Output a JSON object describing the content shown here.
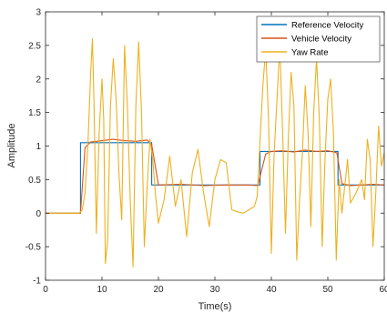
{
  "chart_data": {
    "type": "line",
    "xlabel": "Time(s)",
    "ylabel": "Amplitude",
    "xlim": [
      0,
      60
    ],
    "ylim": [
      -1,
      3
    ],
    "xticks": [
      0,
      10,
      20,
      30,
      40,
      50,
      60
    ],
    "xtick_labels": [
      "0",
      "10",
      "20",
      "30",
      "40",
      "50",
      "60"
    ],
    "yticks": [
      -1,
      -0.5,
      0,
      0.5,
      1,
      1.5,
      2,
      2.5,
      3
    ],
    "ytick_labels": [
      "-1",
      "-0.5",
      "0",
      "0.5",
      "1",
      "1.5",
      "2",
      "2.5",
      "3"
    ],
    "grid": false,
    "legend_position": "top-right",
    "series": [
      {
        "name": "Reference Velocity",
        "color": "#0072BD",
        "x": [
          0,
          6.2,
          6.2,
          18.8,
          18.8,
          38,
          38,
          51.8,
          51.8,
          60
        ],
        "y": [
          0,
          0,
          1.05,
          1.05,
          0.42,
          0.42,
          0.92,
          0.92,
          0.42,
          0.42
        ]
      },
      {
        "name": "Vehicle Velocity",
        "color": "#D95319",
        "x": [
          0,
          6.2,
          7,
          8,
          10,
          12,
          14,
          16,
          18,
          18.8,
          20,
          24,
          28,
          32,
          36,
          37.6,
          39,
          40,
          42,
          44,
          46,
          48,
          50,
          51.6,
          52.5,
          54,
          56,
          58,
          60
        ],
        "y": [
          0,
          0,
          0.98,
          1.06,
          1.08,
          1.1,
          1.08,
          1.07,
          1.09,
          1.02,
          0.42,
          0.43,
          0.41,
          0.42,
          0.42,
          0.41,
          0.88,
          0.92,
          0.93,
          0.91,
          0.94,
          0.92,
          0.93,
          0.9,
          0.44,
          0.41,
          0.42,
          0.43,
          0.42
        ]
      },
      {
        "name": "Yaw Rate",
        "color": "#EDB120",
        "x": [
          0,
          6,
          6.5,
          7,
          7.5,
          8,
          8.3,
          8.6,
          9,
          9.5,
          10,
          10.3,
          10.6,
          11,
          11.5,
          12,
          12.5,
          13,
          13.5,
          14,
          14.5,
          15,
          15.5,
          16,
          16.5,
          17,
          17.5,
          18,
          18.5,
          19,
          19.5,
          20,
          21,
          22,
          23,
          24,
          25,
          26,
          27,
          28,
          29,
          30,
          31,
          32,
          33,
          34,
          35,
          36,
          37,
          37.5,
          38,
          38.5,
          39,
          39.5,
          40,
          40.5,
          41,
          41.5,
          42,
          42.5,
          43,
          43.5,
          44,
          44.5,
          45,
          45.5,
          46,
          46.5,
          47,
          47.5,
          48,
          48.5,
          49,
          49.5,
          50,
          50.5,
          51,
          51.5,
          52,
          52.5,
          53,
          53.5,
          54,
          55,
          56,
          56.5,
          57,
          57.5,
          58,
          58.5,
          59,
          59.5,
          60
        ],
        "y": [
          0,
          0,
          0.05,
          0.3,
          1.0,
          2.1,
          2.6,
          1.6,
          -0.3,
          1.2,
          2.0,
          1.4,
          -0.75,
          -0.4,
          1.6,
          2.3,
          1.7,
          0.6,
          -0.1,
          2.5,
          1.6,
          0.2,
          -0.8,
          1.6,
          2.55,
          1.5,
          -0.5,
          0.4,
          1.1,
          0.8,
          0.25,
          -0.15,
          0.2,
          0.85,
          0.1,
          0.5,
          -0.35,
          0.6,
          0.95,
          0.3,
          -0.2,
          0.5,
          0.8,
          0.75,
          0.05,
          0.02,
          0.0,
          0.05,
          0.1,
          0.25,
          1.1,
          1.9,
          2.45,
          1.4,
          -0.6,
          0.9,
          1.7,
          2.5,
          1.2,
          -0.3,
          1.1,
          2.1,
          1.6,
          -0.7,
          0.2,
          0.9,
          1.9,
          1.2,
          -0.2,
          1.5,
          2.3,
          1.4,
          -0.5,
          0.8,
          1.7,
          2.0,
          1.2,
          -0.7,
          0.5,
          0.0,
          0.4,
          0.8,
          0.15,
          0.3,
          0.5,
          0.2,
          1.1,
          0.8,
          -0.5,
          0.3,
          1.3,
          0.7,
          0.9
        ]
      }
    ]
  }
}
